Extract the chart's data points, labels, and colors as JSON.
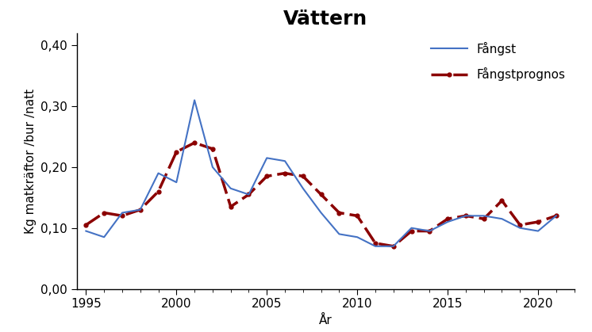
{
  "title": "Vättern",
  "xlabel": "År",
  "ylabel": "Kg matkräftor /bur /natt",
  "years_fangst": [
    1995,
    1996,
    1997,
    1998,
    1999,
    2000,
    2001,
    2002,
    2003,
    2004,
    2005,
    2006,
    2007,
    2008,
    2009,
    2010,
    2011,
    2012,
    2013,
    2014,
    2015,
    2016,
    2017,
    2018,
    2019,
    2020,
    2021
  ],
  "fangst": [
    0.095,
    0.085,
    0.125,
    0.13,
    0.19,
    0.175,
    0.31,
    0.2,
    0.165,
    0.155,
    0.215,
    0.21,
    0.165,
    0.125,
    0.09,
    0.085,
    0.07,
    0.07,
    0.1,
    0.095,
    0.11,
    0.12,
    0.12,
    0.115,
    0.1,
    0.095,
    0.12
  ],
  "years_prognos": [
    1995,
    1996,
    1997,
    1998,
    1999,
    2000,
    2001,
    2002,
    2003,
    2004,
    2005,
    2006,
    2007,
    2008,
    2009,
    2010,
    2011,
    2012,
    2013,
    2014,
    2015,
    2016,
    2017,
    2018,
    2019,
    2020,
    2021
  ],
  "prognos": [
    0.105,
    0.125,
    0.12,
    0.13,
    0.16,
    0.225,
    0.24,
    0.23,
    0.135,
    0.155,
    0.185,
    0.19,
    0.185,
    0.155,
    0.125,
    0.12,
    0.075,
    0.07,
    0.095,
    0.095,
    0.115,
    0.12,
    0.115,
    0.145,
    0.105,
    0.11,
    0.12
  ],
  "fangst_color": "#4472C4",
  "prognos_color": "#8B0000",
  "fangst_label": "Fångst",
  "prognos_label": "Fångstprognos",
  "ylim": [
    0.0,
    0.42
  ],
  "yticks": [
    0.0,
    0.1,
    0.2,
    0.3,
    0.4
  ],
  "ytick_labels": [
    "0,00",
    "0,10",
    "0,20",
    "0,30",
    "0,40"
  ],
  "xticks": [
    1995,
    2000,
    2005,
    2010,
    2015,
    2020
  ],
  "xlim": [
    1994.5,
    2022.0
  ],
  "background_color": "#ffffff",
  "title_fontsize": 18,
  "axis_fontsize": 11,
  "tick_fontsize": 11,
  "legend_fontsize": 11,
  "fangst_linewidth": 1.5,
  "prognos_linewidth": 2.5
}
